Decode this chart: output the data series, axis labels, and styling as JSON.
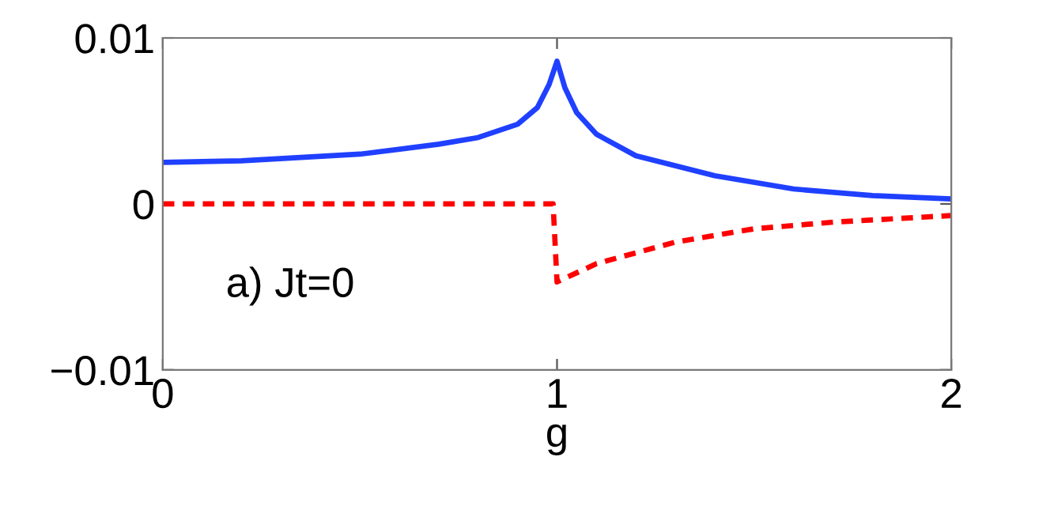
{
  "chart_data": {
    "type": "line",
    "xlabel": "g",
    "annotations": [
      "a) Jt=0"
    ],
    "xlim": [
      0,
      2
    ],
    "xticks": [
      0,
      1,
      2
    ],
    "ylim": [
      -0.01,
      0.01
    ],
    "yticks": [
      {
        "value": -0.01,
        "label": "−0.01"
      },
      0,
      0.01
    ],
    "grid": false,
    "legend": false,
    "series": [
      {
        "color": "#2040ff",
        "line_style": "solid",
        "x": [
          0,
          0.2,
          0.5,
          0.7,
          0.8,
          0.9,
          0.95,
          0.98,
          1.0,
          1.02,
          1.05,
          1.1,
          1.2,
          1.4,
          1.6,
          1.8,
          2.0
        ],
        "values": [
          0.0025,
          0.0026,
          0.003,
          0.0036,
          0.004,
          0.0048,
          0.0058,
          0.0072,
          0.0086,
          0.007,
          0.0055,
          0.0042,
          0.0029,
          0.0017,
          0.0009,
          0.0005,
          0.0003
        ]
      },
      {
        "color": "#ff0000",
        "line_style": "dashed",
        "x": [
          0,
          0.99,
          1.0,
          1.1,
          1.3,
          1.5,
          1.7,
          2.0
        ],
        "values": [
          0,
          0,
          -0.0047,
          -0.0036,
          -0.0023,
          -0.0015,
          -0.0011,
          -0.0007
        ]
      }
    ]
  }
}
